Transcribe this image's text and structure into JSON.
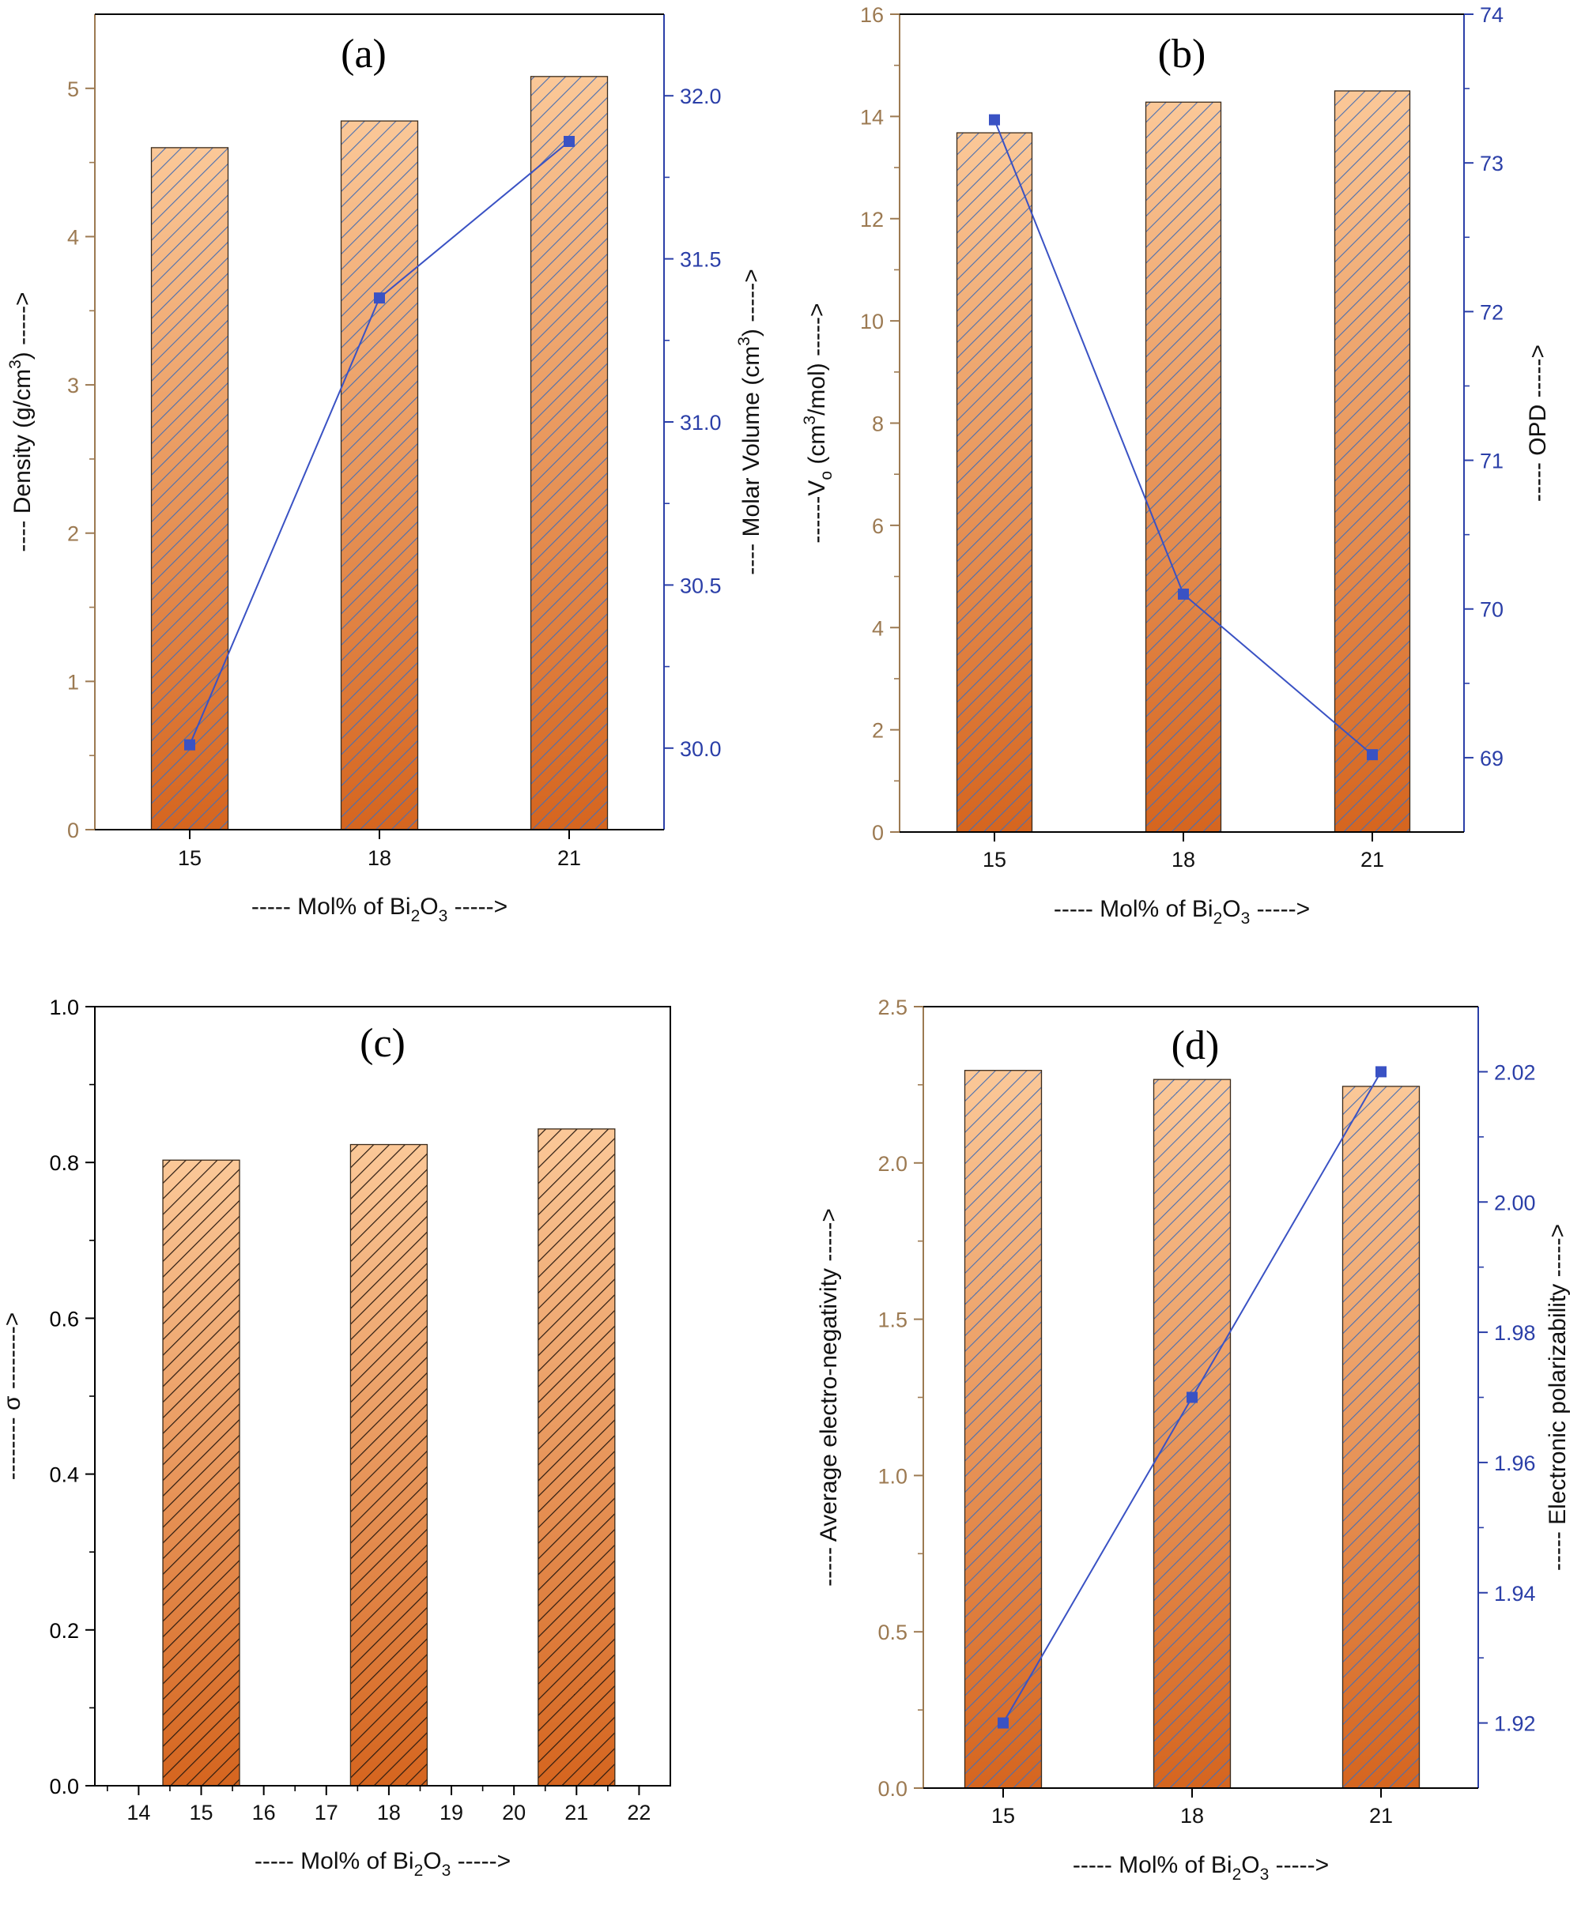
{
  "colors": {
    "left_axis": "#9C7A52",
    "right_axis": "#2B3FA8",
    "line": "#3A52C4",
    "bar_top": "#FBC898",
    "bar_bottom": "#D5651F",
    "hatch_blue": "#4A6FB0",
    "hatch_black": "#2A1A10",
    "frame": "#000000"
  },
  "chart_data": [
    {
      "panel": "a",
      "type": "bar",
      "title": "(a)",
      "categories": [
        "15",
        "18",
        "21"
      ],
      "xlabel": [
        "----- Mol% of Bi",
        "2",
        "O",
        "3",
        " ----->"
      ],
      "ylabel": [
        "---- Density (g/cm",
        "3",
        ") ----->"
      ],
      "ylim": [
        0,
        5.5
      ],
      "yticks": [
        "0",
        "1",
        "2",
        "3",
        "4",
        "5"
      ],
      "bars": [
        4.6,
        4.78,
        5.08
      ],
      "right_axis": {
        "ylabel": [
          "---- Molar Volume (cm",
          "3",
          ") ----->"
        ],
        "ylim": [
          29.75,
          32.25
        ],
        "yticks": [
          "30.0",
          "30.5",
          "31.0",
          "31.5",
          "32.0"
        ],
        "values": [
          30.01,
          31.38,
          31.86
        ]
      },
      "hatch": "blue",
      "grid": false
    },
    {
      "panel": "b",
      "type": "bar",
      "title": "(b)",
      "categories": [
        "15",
        "18",
        "21"
      ],
      "xlabel": [
        "----- Mol% of Bi",
        "2",
        "O",
        "3",
        " ----->"
      ],
      "ylabel": [
        "------V",
        "o",
        " (cm",
        "3",
        "/mol) ----->"
      ],
      "ylim": [
        0,
        16
      ],
      "yticks": [
        "0",
        "2",
        "4",
        "6",
        "8",
        "10",
        "12",
        "14",
        "16"
      ],
      "bars": [
        13.68,
        14.28,
        14.5
      ],
      "right_axis": {
        "ylabel": [
          "----- OPD ----->"
        ],
        "ylim": [
          68.5,
          74
        ],
        "yticks": [
          "69",
          "70",
          "71",
          "72",
          "73",
          "74"
        ],
        "values": [
          73.29,
          70.1,
          69.02
        ]
      },
      "hatch": "blue",
      "grid": false
    },
    {
      "panel": "c",
      "type": "bar",
      "title": "(c)",
      "categories": [
        "15",
        "18",
        "21"
      ],
      "x": [
        15,
        18,
        21
      ],
      "xlim": [
        13.3,
        22.5
      ],
      "xticks": [
        "14",
        "15",
        "16",
        "17",
        "18",
        "19",
        "20",
        "21",
        "22"
      ],
      "xlabel": [
        "----- Mol% of Bi",
        "2",
        "O",
        "3",
        " ----->"
      ],
      "ylabel": [
        "-------- σ -------->"
      ],
      "ylim": [
        0,
        1.0
      ],
      "yticks": [
        "0.0",
        "0.2",
        "0.4",
        "0.6",
        "0.8",
        "1.0"
      ],
      "bars": [
        0.803,
        0.823,
        0.843
      ],
      "hatch": "black",
      "grid": false
    },
    {
      "panel": "d",
      "type": "bar",
      "title": "(d)",
      "categories": [
        "15",
        "18",
        "21"
      ],
      "xlabel": [
        "----- Mol% of Bi",
        "2",
        "O",
        "3",
        " ----->"
      ],
      "ylabel": [
        "----- Average electro-negativity ----->"
      ],
      "ylim": [
        0,
        2.5
      ],
      "yticks": [
        "0.0",
        "0.5",
        "1.0",
        "1.5",
        "2.0",
        "2.5"
      ],
      "bars": [
        2.296,
        2.267,
        2.245
      ],
      "right_axis": {
        "ylabel": [
          "----- Electronic polarizability ----->"
        ],
        "ylim": [
          1.91,
          2.03
        ],
        "yticks": [
          "1.92",
          "1.94",
          "1.96",
          "1.98",
          "2.00",
          "2.02"
        ],
        "values": [
          1.92,
          1.97,
          2.02
        ]
      },
      "hatch": "blue",
      "grid": false
    }
  ]
}
